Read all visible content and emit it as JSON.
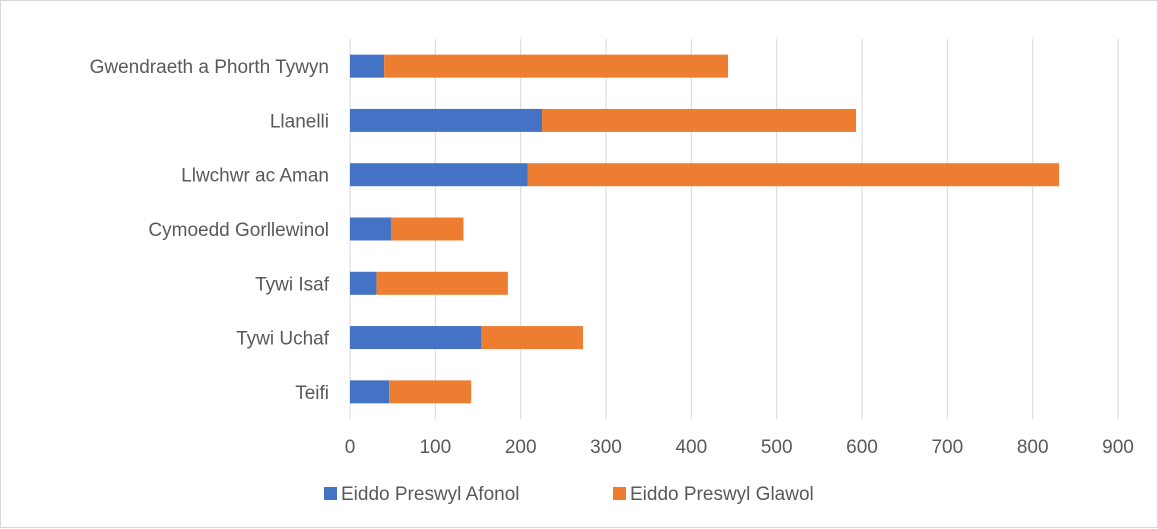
{
  "chart_data": {
    "type": "bar",
    "orientation": "horizontal",
    "stacked": true,
    "categories": [
      "Gwendraeth a Phorth Tywyn",
      "Llanelli",
      "Llwchwr ac Aman",
      "Cymoedd Gorllewinol",
      "Tywi Isaf",
      "Tywi Uchaf",
      "Teifi"
    ],
    "series": [
      {
        "name": "Eiddo Preswyl Afonol",
        "color": "#4472c4",
        "values": [
          40,
          225,
          208,
          48,
          31,
          154,
          46
        ]
      },
      {
        "name": "Eiddo Preswyl Glawol",
        "color": "#ed7d31",
        "values": [
          403,
          368,
          623,
          85,
          154,
          119,
          96
        ]
      }
    ],
    "xlim": [
      0,
      900
    ],
    "xticks": [
      "0",
      "100",
      "200",
      "300",
      "400",
      "500",
      "600",
      "700",
      "800",
      "900"
    ],
    "title": "",
    "xlabel": "",
    "ylabel": "",
    "grid": "vertical",
    "legend_position": "bottom"
  }
}
